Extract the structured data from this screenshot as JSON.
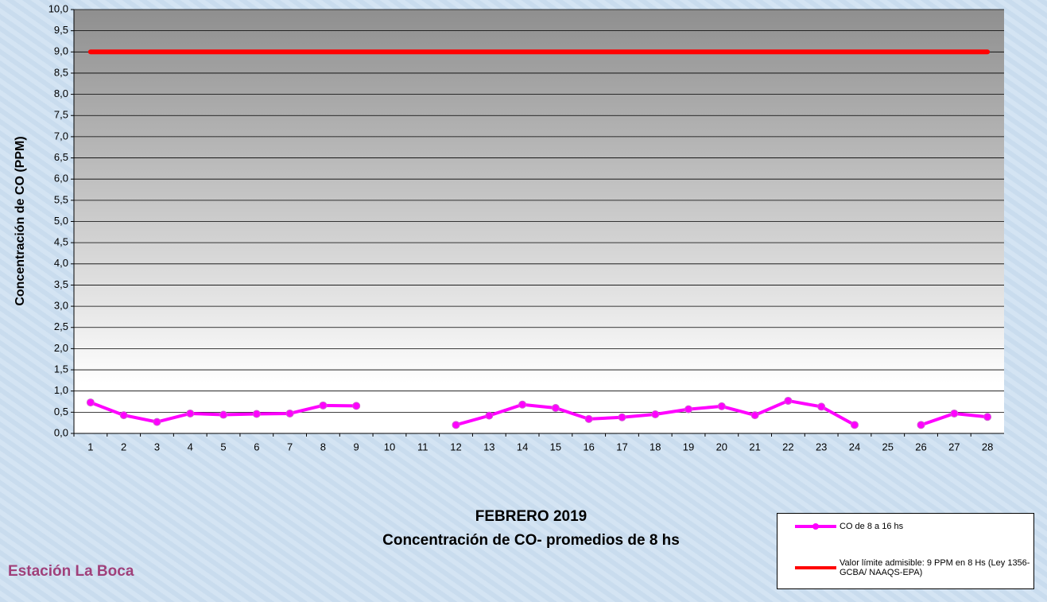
{
  "chart_data": {
    "type": "line",
    "title": "FEBRERO 2019",
    "subtitle": "Concentración de CO- promedios de 8 hs",
    "station": "Estación La Boca",
    "y_label": "Concentración de CO (PPM)",
    "categories": [
      "1",
      "2",
      "3",
      "4",
      "5",
      "6",
      "7",
      "8",
      "9",
      "10",
      "11",
      "12",
      "13",
      "14",
      "15",
      "16",
      "17",
      "18",
      "19",
      "20",
      "21",
      "22",
      "23",
      "24",
      "25",
      "26",
      "27",
      "28"
    ],
    "series": [
      {
        "name": "CO de 8 a 16 hs",
        "color": "#ff00ff",
        "marker": "circle",
        "values": [
          0.73,
          0.43,
          0.27,
          0.47,
          0.44,
          0.46,
          0.47,
          0.66,
          0.65,
          null,
          null,
          0.2,
          0.42,
          0.68,
          0.6,
          0.34,
          0.38,
          0.45,
          0.57,
          0.64,
          0.43,
          0.77,
          0.63,
          0.2,
          null,
          0.2,
          0.47,
          0.39
        ]
      },
      {
        "name": "Valor límite admisible: 9 PPM en 8 Hs (Ley 1356-GCBA/ NAAQS-EPA)",
        "color": "#ff0000",
        "values": [
          9,
          9,
          9,
          9,
          9,
          9,
          9,
          9,
          9,
          9,
          9,
          9,
          9,
          9,
          9,
          9,
          9,
          9,
          9,
          9,
          9,
          9,
          9,
          9,
          9,
          9,
          9,
          9
        ]
      }
    ],
    "ylim": [
      0,
      10
    ],
    "yticks": [
      {
        "value": 0,
        "label": "0,0"
      },
      {
        "value": 0.5,
        "label": "0,5"
      },
      {
        "value": 1,
        "label": "1,0"
      },
      {
        "value": 1.5,
        "label": "1,5"
      },
      {
        "value": 2,
        "label": "2,0"
      },
      {
        "value": 2.5,
        "label": "2,5"
      },
      {
        "value": 3,
        "label": "3,0"
      },
      {
        "value": 3.5,
        "label": "3,5"
      },
      {
        "value": 4,
        "label": "4,0"
      },
      {
        "value": 4.5,
        "label": "4,5"
      },
      {
        "value": 5,
        "label": "5,0"
      },
      {
        "value": 5.5,
        "label": "5,5"
      },
      {
        "value": 6,
        "label": "6,0"
      },
      {
        "value": 6.5,
        "label": "6,5"
      },
      {
        "value": 7,
        "label": "7,0"
      },
      {
        "value": 7.5,
        "label": "7,5"
      },
      {
        "value": 8,
        "label": "8,0"
      },
      {
        "value": 8.5,
        "label": "8,5"
      },
      {
        "value": 9,
        "label": "9,0"
      },
      {
        "value": 9.5,
        "label": "9,5"
      },
      {
        "value": 10,
        "label": "10,0"
      }
    ],
    "grid": true
  }
}
